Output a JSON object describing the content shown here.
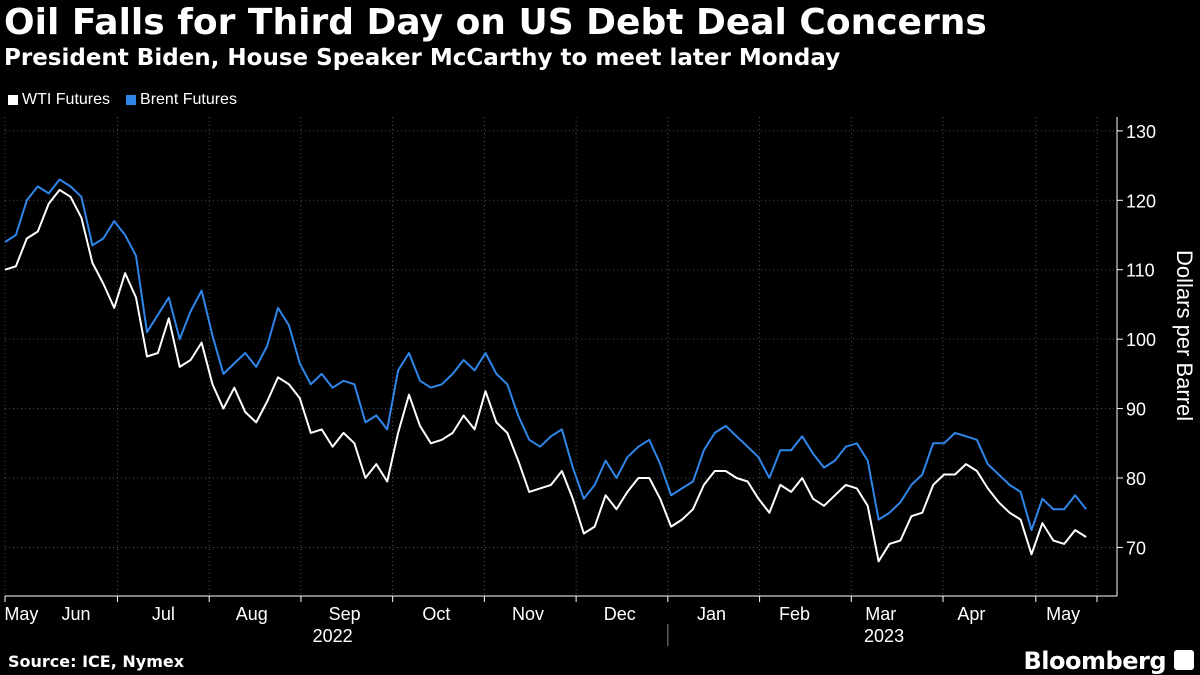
{
  "header": {
    "title": "Oil Falls for Third Day on US Debt Deal Concerns",
    "subtitle": "President Biden, House Speaker McCarthy to meet later Monday"
  },
  "footer": {
    "source": "Source: ICE, Nymex",
    "brand": "Bloomberg"
  },
  "colors": {
    "wti": "#ffffff",
    "brent": "#2f86e8",
    "grid": "#555555",
    "background": "#000000"
  },
  "chart_data": {
    "type": "line",
    "title": "Oil Falls for Third Day on US Debt Deal Concerns",
    "ylabel": "Dollars per Barrel",
    "xlabel": "",
    "ylim": [
      63,
      132
    ],
    "yticks": [
      70,
      80,
      90,
      100,
      110,
      120,
      130
    ],
    "xlim": [
      0,
      100
    ],
    "month_ticks": [
      {
        "label": "May",
        "x": 1.5
      },
      {
        "label": "Jun",
        "x": 6.5
      },
      {
        "label": "Jul",
        "x": 14.5
      },
      {
        "label": "Aug",
        "x": 22.6
      },
      {
        "label": "Sep",
        "x": 31.1
      },
      {
        "label": "Oct",
        "x": 39.5
      },
      {
        "label": "Nov",
        "x": 47.9
      },
      {
        "label": "Dec",
        "x": 56.3
      },
      {
        "label": "Jan",
        "x": 64.7
      },
      {
        "label": "Feb",
        "x": 72.3
      },
      {
        "label": "Mar",
        "x": 80.2
      },
      {
        "label": "Apr",
        "x": 88.5
      },
      {
        "label": "May",
        "x": 96.9
      }
    ],
    "month_boundaries": [
      0,
      10.3,
      18.7,
      27.1,
      35.5,
      43.9,
      52.3,
      60.7,
      69.1,
      77.5,
      85.9,
      94.4,
      100
    ],
    "year_labels": [
      {
        "label": "2022",
        "x": 30.0
      },
      {
        "label": "2023",
        "x": 80.5
      }
    ],
    "year_divider_x": 60.7,
    "series": [
      {
        "name": "WTI Futures",
        "color": "#ffffff",
        "x": [
          0,
          1,
          2,
          3,
          4,
          5,
          6,
          7,
          8,
          9,
          10,
          11,
          12,
          13,
          14,
          15,
          16,
          17,
          18,
          19,
          20,
          21,
          22,
          23,
          24,
          25,
          26,
          27,
          28,
          29,
          30,
          31,
          32,
          33,
          34,
          35,
          36,
          37,
          38,
          39,
          40,
          41,
          42,
          43,
          44,
          45,
          46,
          47,
          48,
          49,
          50,
          51,
          52,
          53,
          54,
          55,
          56,
          57,
          58,
          59,
          60,
          61,
          62,
          63,
          64,
          65,
          66,
          67,
          68,
          69,
          70,
          71,
          72,
          73,
          74,
          75,
          76,
          77,
          78,
          79,
          80,
          81,
          82,
          83,
          84,
          85,
          86,
          87,
          88,
          89,
          90,
          91,
          92,
          93,
          94,
          95,
          96,
          97,
          98,
          99
        ],
        "values": [
          110,
          110.5,
          114.5,
          115.5,
          119.5,
          121.5,
          120.5,
          117.5,
          111,
          108,
          104.5,
          109.5,
          106,
          97.5,
          98,
          103,
          96,
          97,
          99.5,
          93.5,
          90,
          93,
          89.5,
          88,
          91,
          94.5,
          93.5,
          91.5,
          86.5,
          87,
          84.5,
          86.5,
          85,
          80,
          82,
          79.5,
          86.5,
          92,
          87.5,
          85,
          85.5,
          86.5,
          89,
          87,
          92.5,
          88,
          86.5,
          82.5,
          78,
          78.5,
          79,
          81,
          77,
          72,
          73,
          77.5,
          75.5,
          78,
          80,
          80,
          77,
          73,
          74,
          75.5,
          79,
          81,
          81,
          80,
          79.5,
          77,
          75,
          79,
          78,
          80,
          77,
          76,
          77.5,
          79,
          78.5,
          76,
          68,
          70.5,
          71,
          74.5,
          75,
          79,
          80.5,
          80.5,
          82,
          81,
          78.5,
          76.5,
          75,
          74,
          69,
          73.5,
          71,
          70.5,
          72.5,
          71.5
        ]
      },
      {
        "name": "Brent Futures",
        "color": "#2f86e8",
        "x": [
          0,
          1,
          2,
          3,
          4,
          5,
          6,
          7,
          8,
          9,
          10,
          11,
          12,
          13,
          14,
          15,
          16,
          17,
          18,
          19,
          20,
          21,
          22,
          23,
          24,
          25,
          26,
          27,
          28,
          29,
          30,
          31,
          32,
          33,
          34,
          35,
          36,
          37,
          38,
          39,
          40,
          41,
          42,
          43,
          44,
          45,
          46,
          47,
          48,
          49,
          50,
          51,
          52,
          53,
          54,
          55,
          56,
          57,
          58,
          59,
          60,
          61,
          62,
          63,
          64,
          65,
          66,
          67,
          68,
          69,
          70,
          71,
          72,
          73,
          74,
          75,
          76,
          77,
          78,
          79,
          80,
          81,
          82,
          83,
          84,
          85,
          86,
          87,
          88,
          89,
          90,
          91,
          92,
          93,
          94,
          95,
          96,
          97,
          98,
          99
        ],
        "values": [
          114,
          115,
          120,
          122,
          121,
          123,
          122,
          120.5,
          113.5,
          114.5,
          117,
          115,
          112,
          101,
          103.5,
          106,
          100,
          104,
          107,
          100.5,
          95,
          96.5,
          98,
          96,
          99,
          104.5,
          102,
          96.5,
          93.5,
          95,
          93,
          94,
          93.5,
          88,
          89,
          87,
          95.5,
          98,
          94,
          93,
          93.5,
          95,
          97,
          95.5,
          98,
          95,
          93.5,
          89,
          85.5,
          84.5,
          86,
          87,
          81.5,
          77,
          79,
          82.5,
          80,
          83,
          84.5,
          85.5,
          82,
          77.5,
          78.5,
          79.5,
          84,
          86.5,
          87.5,
          86,
          84.5,
          83,
          80,
          84,
          84,
          86,
          83.5,
          81.5,
          82.5,
          84.5,
          85,
          82.5,
          74,
          75,
          76.5,
          79,
          80.5,
          85,
          85,
          86.5,
          86,
          85.5,
          82,
          80.5,
          79,
          78,
          72.5,
          77,
          75.5,
          75.5,
          77.5,
          75.5
        ]
      }
    ]
  }
}
